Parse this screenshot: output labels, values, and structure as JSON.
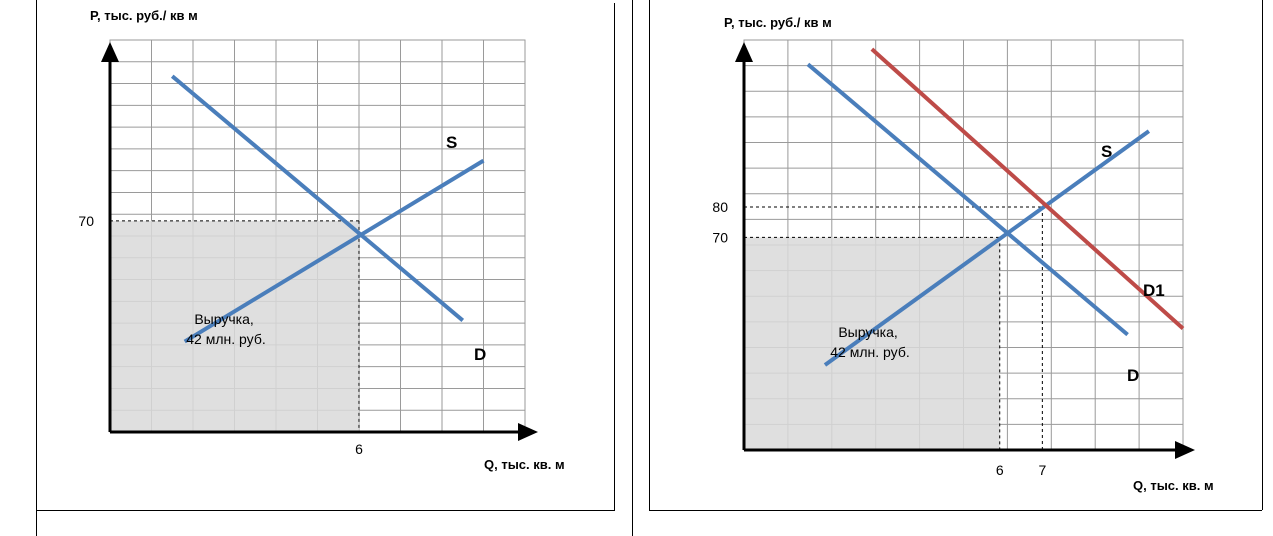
{
  "chart_data": [
    {
      "type": "line",
      "ylabel": "P, тыс. руб./ кв м",
      "xlabel": "Q, тыс. кв. м",
      "xlim": [
        0,
        10
      ],
      "ylim": [
        0,
        130
      ],
      "grid": true,
      "x_ticks": [
        {
          "value": 6,
          "label": "6"
        }
      ],
      "y_ticks": [
        {
          "value": 70,
          "label": "70"
        }
      ],
      "series": [
        {
          "name": "S",
          "color": "#4a7ebb",
          "points": [
            [
              1.8,
              30
            ],
            [
              9,
              90
            ]
          ]
        },
        {
          "name": "D",
          "color": "#4a7ebb",
          "points": [
            [
              1.5,
              118
            ],
            [
              8.5,
              37
            ]
          ]
        }
      ],
      "equilibrium": [
        {
          "x": 6,
          "y": 70
        }
      ],
      "revenue_area": {
        "x": 6,
        "y": 70
      },
      "annotation": [
        "Выручка,",
        "42 млн. руб."
      ]
    },
    {
      "type": "line",
      "ylabel": "P, тыс. руб./ кв м",
      "xlabel": "Q, тыс. кв. м",
      "xlim": [
        0,
        10.3
      ],
      "ylim": [
        0,
        135
      ],
      "grid": true,
      "x_ticks": [
        {
          "value": 6,
          "label": "6"
        },
        {
          "value": 7,
          "label": "7"
        }
      ],
      "y_ticks": [
        {
          "value": 80,
          "label": "80"
        },
        {
          "value": 70,
          "label": "70"
        }
      ],
      "series": [
        {
          "name": "S",
          "color": "#4a7ebb",
          "points": [
            [
              1.9,
              28
            ],
            [
              9.5,
              105
            ]
          ]
        },
        {
          "name": "D",
          "color": "#4a7ebb",
          "points": [
            [
              1.5,
              127
            ],
            [
              9,
              38
            ]
          ]
        },
        {
          "name": "D1",
          "color": "#be4b48",
          "points": [
            [
              3,
              132
            ],
            [
              10.3,
              40
            ]
          ]
        }
      ],
      "equilibrium": [
        {
          "x": 6,
          "y": 70
        },
        {
          "x": 7,
          "y": 80
        }
      ],
      "revenue_area": {
        "x": 6,
        "y": 70
      },
      "annotation": [
        "Выручка,",
        "42 млн. руб."
      ]
    }
  ]
}
